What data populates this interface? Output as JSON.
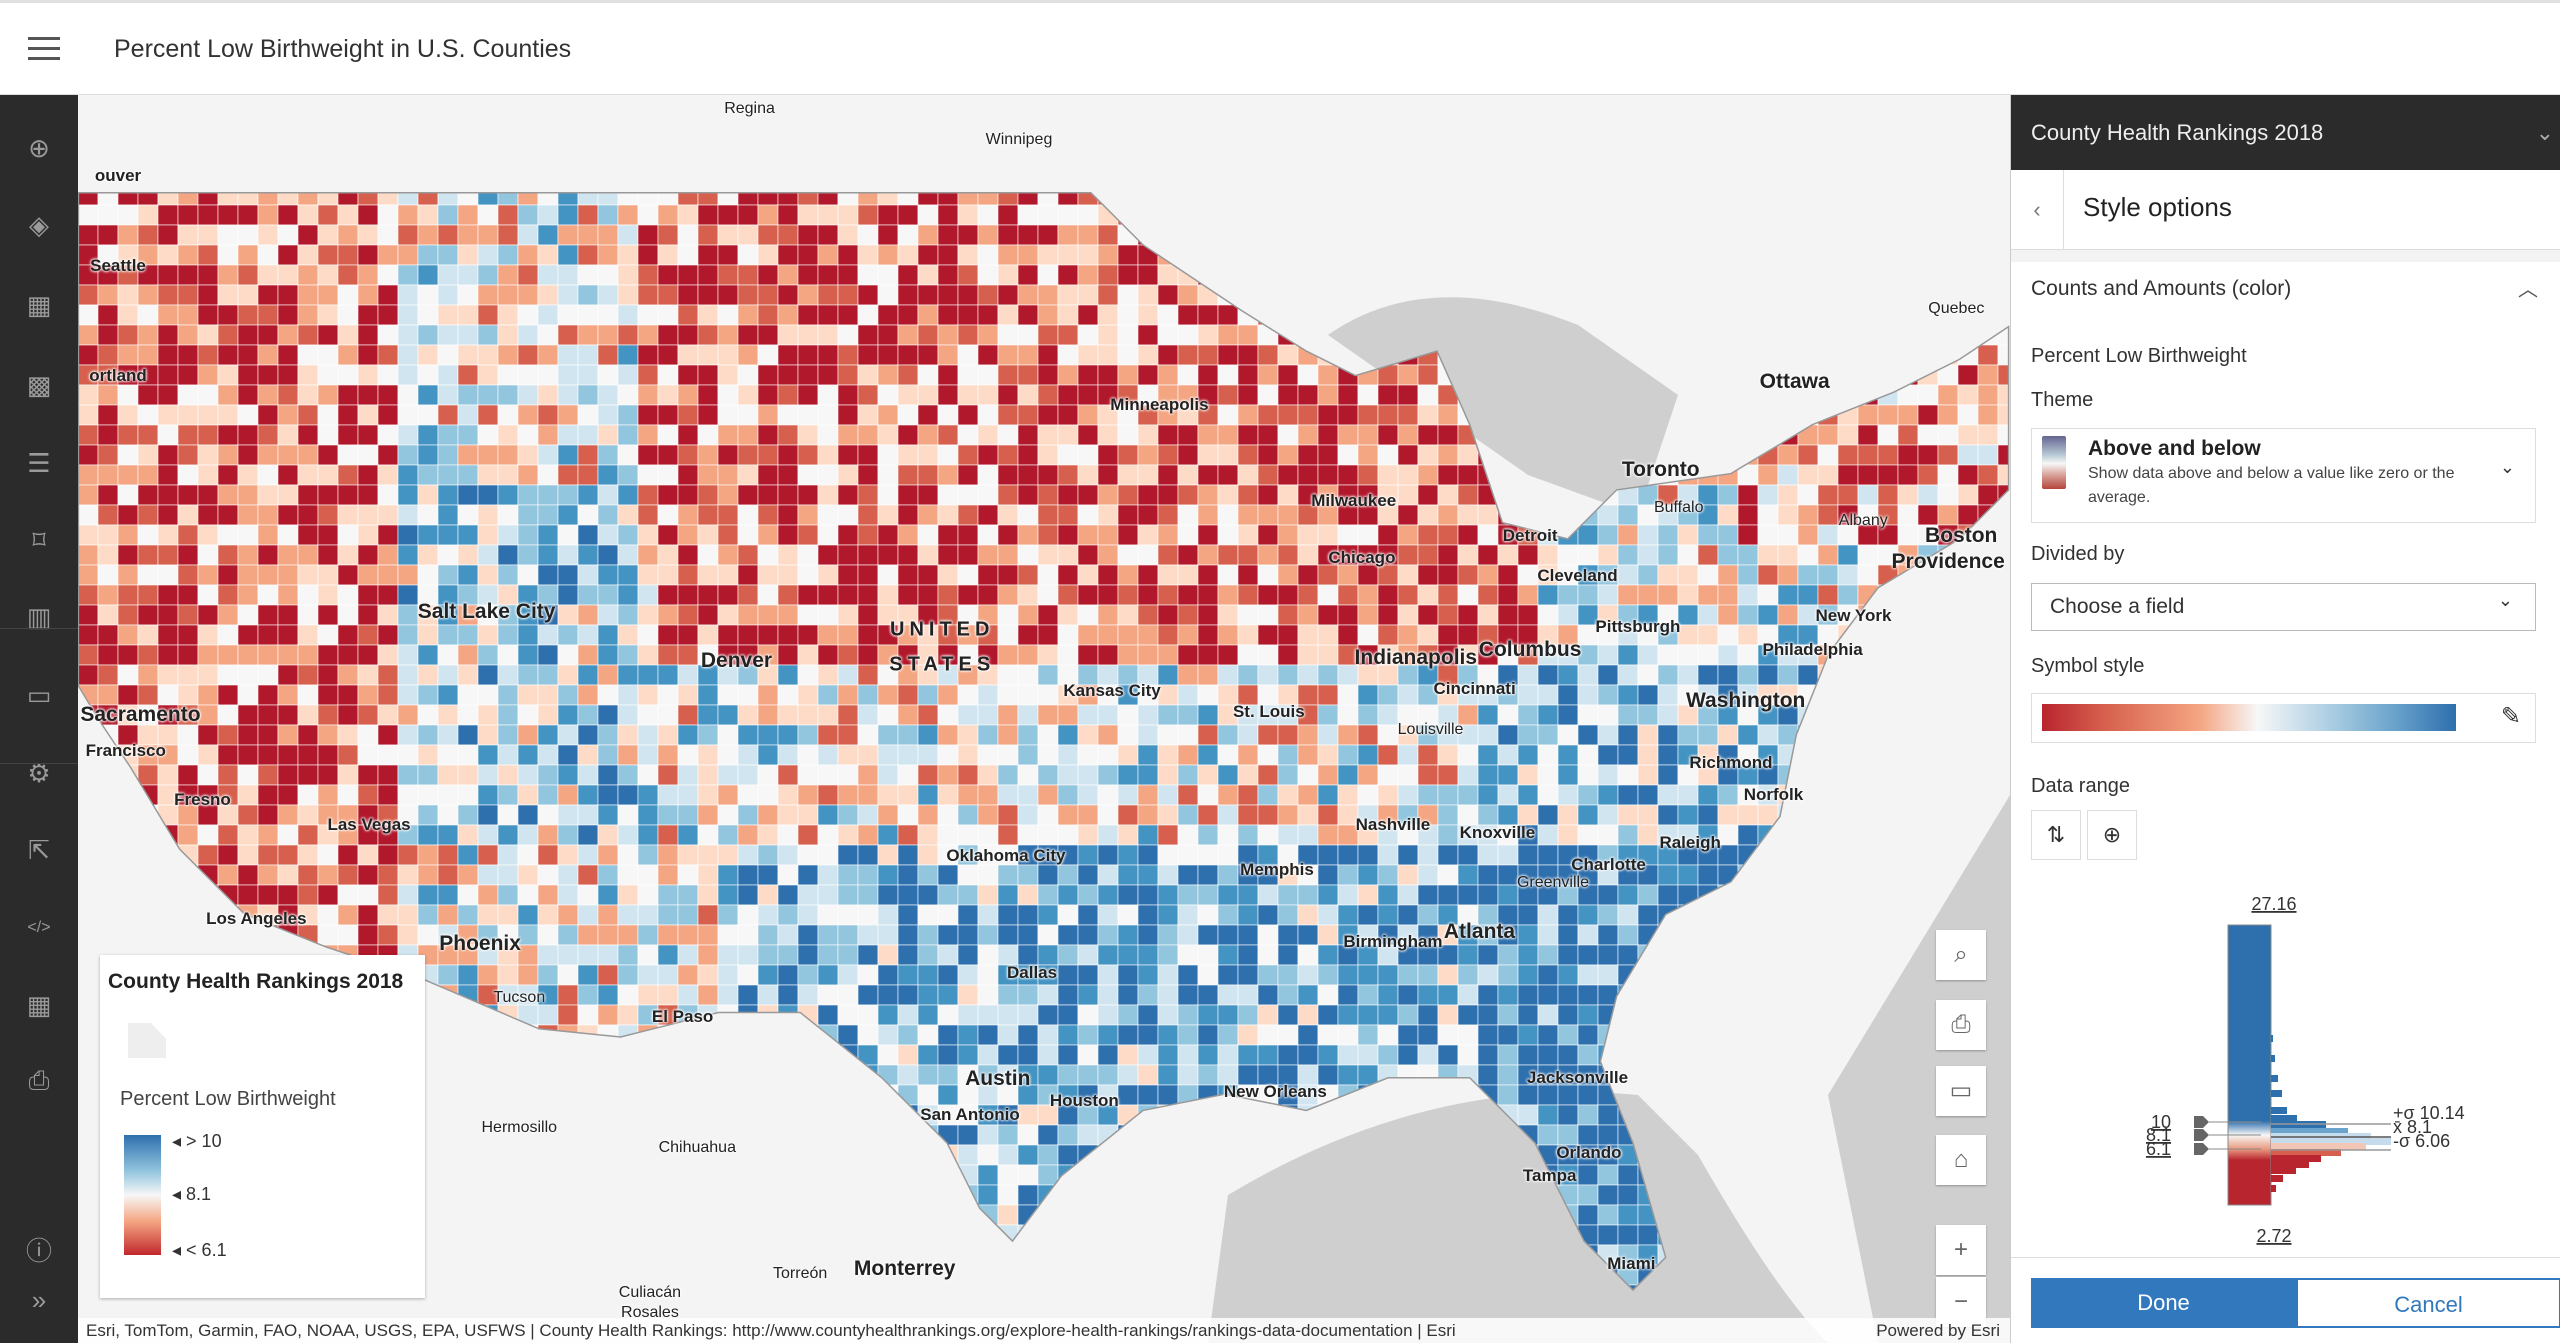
{
  "app": {
    "title": "Percent Low Birthweight in U.S. Counties"
  },
  "sidebar": {
    "items": [
      {
        "name": "add",
        "icon": "plus-circle-icon",
        "glyph": "⊕"
      },
      {
        "name": "layers",
        "icon": "layers-icon",
        "glyph": "◈"
      },
      {
        "name": "table",
        "icon": "table-icon",
        "glyph": "▦"
      },
      {
        "name": "basemap",
        "icon": "basemap-gallery-icon",
        "glyph": "▩"
      },
      {
        "name": "legend",
        "icon": "legend-list-icon",
        "glyph": "☰"
      },
      {
        "name": "bookmarks",
        "icon": "bookmark-icon",
        "glyph": "⌑"
      },
      {
        "name": "charts",
        "icon": "chart-icon",
        "glyph": "▥"
      },
      {
        "name": "folder",
        "icon": "folder-icon",
        "glyph": "▭"
      },
      {
        "name": "settings",
        "icon": "gear-icon",
        "glyph": "⚙"
      },
      {
        "name": "share",
        "icon": "share-icon",
        "glyph": "⇱"
      },
      {
        "name": "embed",
        "icon": "code-icon",
        "glyph": "</>"
      },
      {
        "name": "apps",
        "icon": "apps-grid-icon",
        "glyph": "▦"
      },
      {
        "name": "print",
        "icon": "print-icon",
        "glyph": "⎙"
      },
      {
        "name": "info",
        "icon": "info-icon",
        "glyph": "ⓘ"
      },
      {
        "name": "expand",
        "icon": "double-chevron-right-icon",
        "glyph": "»"
      }
    ]
  },
  "map": {
    "labels": [
      {
        "t": "Regina",
        "c": "sm"
      },
      {
        "t": "Winnipeg",
        "c": "sm"
      },
      {
        "t": "ouver",
        "c": ""
      },
      {
        "t": "Seattle",
        "c": ""
      },
      {
        "t": "ortland",
        "c": ""
      },
      {
        "t": "Minneapolis",
        "c": ""
      },
      {
        "t": "Milwaukee",
        "c": ""
      },
      {
        "t": "Ottawa",
        "c": "big"
      },
      {
        "t": "Quebec",
        "c": "sm"
      },
      {
        "t": "Toronto",
        "c": "big"
      },
      {
        "t": "Buffalo",
        "c": "sm"
      },
      {
        "t": "Detroit",
        "c": ""
      },
      {
        "t": "Albany",
        "c": "sm"
      },
      {
        "t": "Boston",
        "c": "big"
      },
      {
        "t": "Providence",
        "c": "big"
      },
      {
        "t": "Chicago",
        "c": ""
      },
      {
        "t": "Cleveland",
        "c": ""
      },
      {
        "t": "Salt Lake City",
        "c": "big"
      },
      {
        "t": "UNITED",
        "c": "country"
      },
      {
        "t": "STATES",
        "c": "country"
      },
      {
        "t": "Denver",
        "c": "big"
      },
      {
        "t": "Pittsburgh",
        "c": ""
      },
      {
        "t": "New York",
        "c": ""
      },
      {
        "t": "Philadelphia",
        "c": ""
      },
      {
        "t": "Indianapolis",
        "c": "big"
      },
      {
        "t": "Columbus",
        "c": "big"
      },
      {
        "t": "Washington",
        "c": "big"
      },
      {
        "t": "Cincinnati",
        "c": ""
      },
      {
        "t": "Kansas City",
        "c": ""
      },
      {
        "t": "St. Louis",
        "c": ""
      },
      {
        "t": "Sacramento",
        "c": "big"
      },
      {
        "t": "Francisco",
        "c": ""
      },
      {
        "t": "Louisville",
        "c": "sm"
      },
      {
        "t": "Richmond",
        "c": ""
      },
      {
        "t": "Norfolk",
        "c": ""
      },
      {
        "t": "Fresno",
        "c": ""
      },
      {
        "t": "Las Vegas",
        "c": ""
      },
      {
        "t": "Nashville",
        "c": ""
      },
      {
        "t": "Knoxville",
        "c": ""
      },
      {
        "t": "Raleigh",
        "c": ""
      },
      {
        "t": "Oklahoma City",
        "c": ""
      },
      {
        "t": "Charlotte",
        "c": ""
      },
      {
        "t": "Memphis",
        "c": ""
      },
      {
        "t": "Greenville",
        "c": "sm"
      },
      {
        "t": "Los Angeles",
        "c": ""
      },
      {
        "t": "Birmingham",
        "c": ""
      },
      {
        "t": "Atlanta",
        "c": "big"
      },
      {
        "t": "Phoenix",
        "c": "big"
      },
      {
        "t": "Dallas",
        "c": ""
      },
      {
        "t": "Tucson",
        "c": "sm"
      },
      {
        "t": "El Paso",
        "c": ""
      },
      {
        "t": "Austin",
        "c": "big"
      },
      {
        "t": "Jacksonville",
        "c": ""
      },
      {
        "t": "Houston",
        "c": ""
      },
      {
        "t": "New Orleans",
        "c": ""
      },
      {
        "t": "San Antonio",
        "c": ""
      },
      {
        "t": "Hermosillo",
        "c": "sm"
      },
      {
        "t": "Chihuahua",
        "c": "sm"
      },
      {
        "t": "Orlando",
        "c": ""
      },
      {
        "t": "Tampa",
        "c": ""
      },
      {
        "t": "Miami",
        "c": ""
      },
      {
        "t": "Monterrey",
        "c": "big"
      },
      {
        "t": "Torreón",
        "c": "sm"
      },
      {
        "t": "Culiacán",
        "c": "sm"
      },
      {
        "t": "Rosales",
        "c": "sm"
      }
    ],
    "attribution": "Esri, TomTom, Garmin, FAO, NOAA, USGS, EPA, USFWS | County Health Rankings: http://www.countyhealthrankings.org/explore-health-rankings/rankings-data-documentation | Esri",
    "powered_by": "Powered by Esri",
    "colors": [
      "#b2182b",
      "#d6604d",
      "#f4a582",
      "#fddbc7",
      "#f7f7f7",
      "#d1e5f0",
      "#92c5de",
      "#4393c3",
      "#2e6fad"
    ],
    "widgets": [
      {
        "name": "search",
        "icon": "search-icon",
        "glyph": "⌕"
      },
      {
        "name": "print-map",
        "icon": "print-preview-icon",
        "glyph": "⎙"
      },
      {
        "name": "screen",
        "icon": "monitor-icon",
        "glyph": "▭"
      },
      {
        "name": "home",
        "icon": "home-icon",
        "glyph": "⌂"
      },
      {
        "name": "zoom-in",
        "icon": "plus-icon",
        "glyph": "+"
      },
      {
        "name": "zoom-out",
        "icon": "minus-icon",
        "glyph": "−"
      }
    ]
  },
  "legend": {
    "title": "County Health Rankings 2018",
    "field": "Percent Low Birthweight",
    "high": "> 10",
    "mid": "8.1",
    "low": "< 6.1"
  },
  "panel": {
    "layer_title": "County Health Rankings 2018",
    "title": "Style options",
    "section": "Counts and Amounts (color)",
    "field": "Percent Low Birthweight",
    "theme_label": "Theme",
    "theme_name": "Above and below",
    "theme_desc": "Show data above and below a value like zero or the average.",
    "divided_label": "Divided by",
    "divided_value": "Choose a field",
    "symbol_label": "Symbol style",
    "range_label": "Data range",
    "histogram": {
      "max": "27.16",
      "min": "2.72",
      "handle_high": "10",
      "handle_mid": "8.1",
      "handle_low": "6.1",
      "plus_sigma": "+σ 10.14",
      "mean": "x̄ 8.1",
      "minus_sigma": "-σ 6.06"
    },
    "done": "Done",
    "cancel": "Cancel",
    "accent": "#3278bd"
  }
}
